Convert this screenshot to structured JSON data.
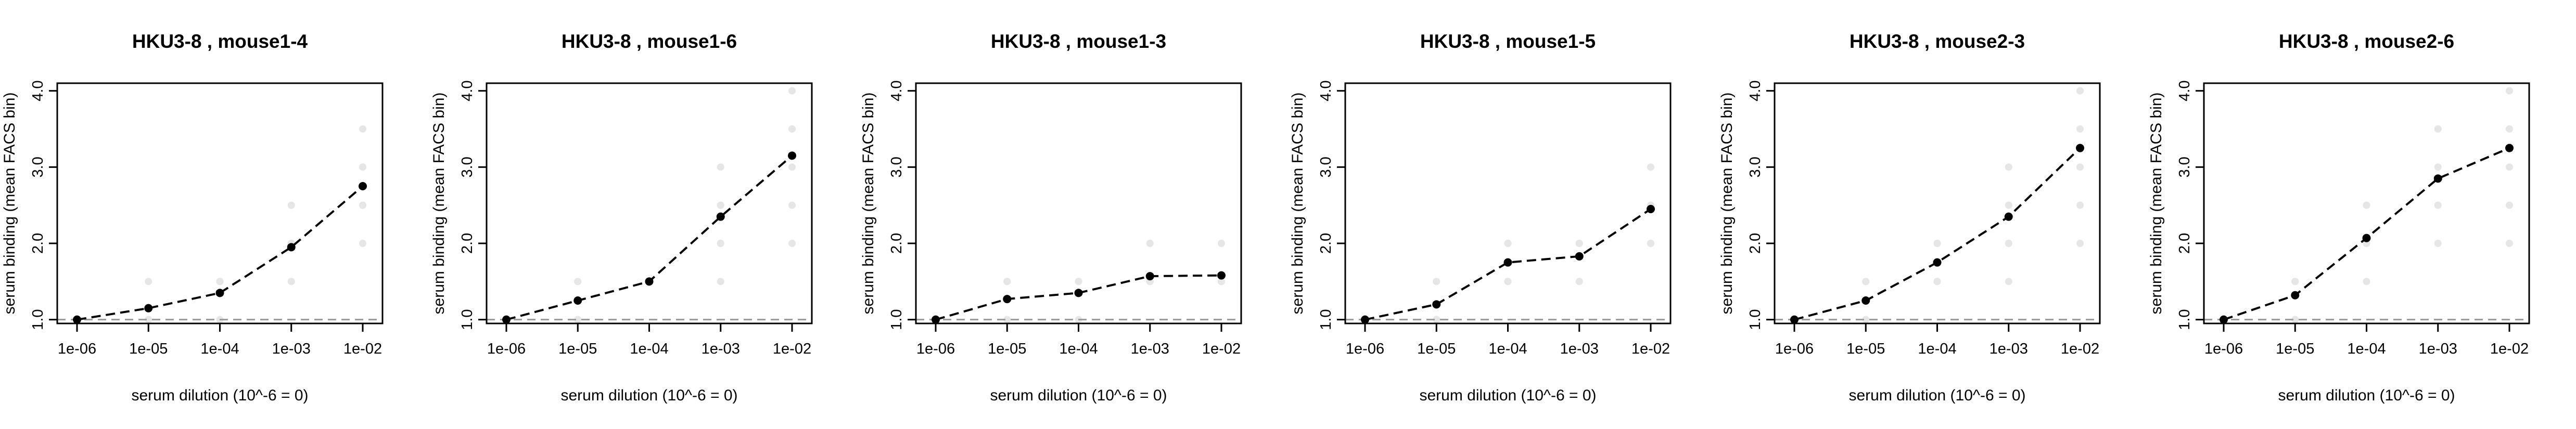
{
  "chart_data": [
    {
      "type": "line",
      "title": "HKU3-8 , mouse1-4",
      "xlabel": "serum dilution (10^-6 = 0)",
      "ylabel": "serum binding (mean FACS bin)",
      "x_ticks": [
        "1e-06",
        "1e-05",
        "1e-04",
        "1e-03",
        "1e-02"
      ],
      "y_ticks": [
        "1.0",
        "2.0",
        "3.0",
        "4.0"
      ],
      "ylim": [
        0.95,
        4.1
      ],
      "log_x": true,
      "series": [
        {
          "x": [
            "1e-06",
            "1e-05",
            "1e-04",
            "1e-03",
            "1e-02"
          ],
          "values": [
            1.0,
            1.15,
            1.35,
            1.95,
            2.75
          ]
        }
      ],
      "reference_line": 1.0
    },
    {
      "type": "line",
      "title": "HKU3-8 , mouse1-6",
      "xlabel": "serum dilution (10^-6 = 0)",
      "ylabel": "serum binding (mean FACS bin)",
      "x_ticks": [
        "1e-06",
        "1e-05",
        "1e-04",
        "1e-03",
        "1e-02"
      ],
      "y_ticks": [
        "1.0",
        "2.0",
        "3.0",
        "4.0"
      ],
      "ylim": [
        0.95,
        4.1
      ],
      "log_x": true,
      "series": [
        {
          "x": [
            "1e-06",
            "1e-05",
            "1e-04",
            "1e-03",
            "1e-02"
          ],
          "values": [
            1.0,
            1.25,
            1.5,
            2.35,
            3.15
          ]
        }
      ],
      "reference_line": 1.0
    },
    {
      "type": "line",
      "title": "HKU3-8 , mouse1-3",
      "xlabel": "serum dilution (10^-6 = 0)",
      "ylabel": "serum binding (mean FACS bin)",
      "x_ticks": [
        "1e-06",
        "1e-05",
        "1e-04",
        "1e-03",
        "1e-02"
      ],
      "y_ticks": [
        "1.0",
        "2.0",
        "3.0",
        "4.0"
      ],
      "ylim": [
        0.95,
        4.1
      ],
      "log_x": true,
      "series": [
        {
          "x": [
            "1e-06",
            "1e-05",
            "1e-04",
            "1e-03",
            "1e-02"
          ],
          "values": [
            1.0,
            1.27,
            1.35,
            1.57,
            1.58
          ]
        }
      ],
      "reference_line": 1.0
    },
    {
      "type": "line",
      "title": "HKU3-8 , mouse1-5",
      "xlabel": "serum dilution (10^-6 = 0)",
      "ylabel": "serum binding (mean FACS bin)",
      "x_ticks": [
        "1e-06",
        "1e-05",
        "1e-04",
        "1e-03",
        "1e-02"
      ],
      "y_ticks": [
        "1.0",
        "2.0",
        "3.0",
        "4.0"
      ],
      "ylim": [
        0.95,
        4.1
      ],
      "log_x": true,
      "series": [
        {
          "x": [
            "1e-06",
            "1e-05",
            "1e-04",
            "1e-03",
            "1e-02"
          ],
          "values": [
            1.0,
            1.2,
            1.75,
            1.83,
            2.45
          ]
        }
      ],
      "reference_line": 1.0
    },
    {
      "type": "line",
      "title": "HKU3-8 , mouse2-3",
      "xlabel": "serum dilution (10^-6 = 0)",
      "ylabel": "serum binding (mean FACS bin)",
      "x_ticks": [
        "1e-06",
        "1e-05",
        "1e-04",
        "1e-03",
        "1e-02"
      ],
      "y_ticks": [
        "1.0",
        "2.0",
        "3.0",
        "4.0"
      ],
      "ylim": [
        0.95,
        4.1
      ],
      "log_x": true,
      "series": [
        {
          "x": [
            "1e-06",
            "1e-05",
            "1e-04",
            "1e-03",
            "1e-02"
          ],
          "values": [
            1.0,
            1.25,
            1.75,
            2.35,
            3.25
          ]
        }
      ],
      "reference_line": 1.0
    },
    {
      "type": "line",
      "title": "HKU3-8 , mouse2-6",
      "xlabel": "serum dilution (10^-6 = 0)",
      "ylabel": "serum binding (mean FACS bin)",
      "x_ticks": [
        "1e-06",
        "1e-05",
        "1e-04",
        "1e-03",
        "1e-02"
      ],
      "y_ticks": [
        "1.0",
        "2.0",
        "3.0",
        "4.0"
      ],
      "ylim": [
        0.95,
        4.1
      ],
      "log_x": true,
      "series": [
        {
          "x": [
            "1e-06",
            "1e-05",
            "1e-04",
            "1e-03",
            "1e-02"
          ],
          "values": [
            1.0,
            1.32,
            2.07,
            2.85,
            3.25
          ]
        }
      ],
      "reference_line": 1.0
    }
  ],
  "colors": {
    "line": "#000000",
    "reference_line": "#999999",
    "background_points": "#e6e6e6"
  }
}
